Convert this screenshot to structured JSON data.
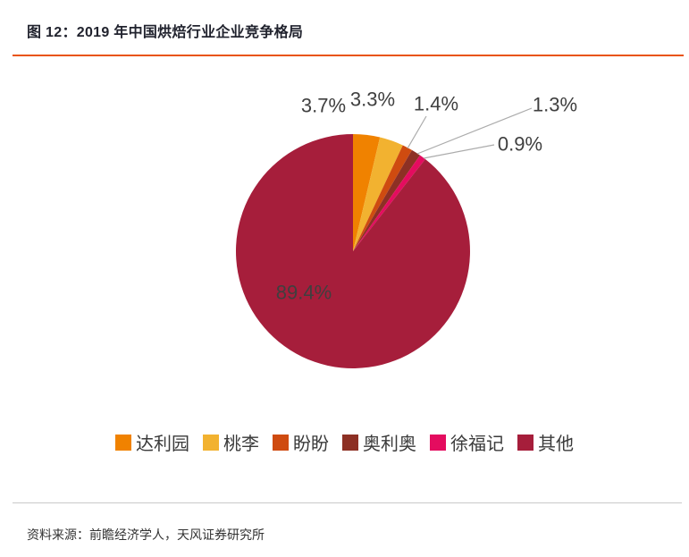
{
  "header": {
    "title": "图 12：2019 年中国烘焙行业企业竞争格局"
  },
  "chart_data": {
    "type": "pie",
    "title": "2019 年中国烘焙行业企业竞争格局",
    "labels": [
      "达利园",
      "桃李",
      "盼盼",
      "奥利奥",
      "徐福记",
      "其他"
    ],
    "values": [
      3.7,
      3.3,
      1.4,
      1.3,
      0.9,
      89.4
    ],
    "value_labels": [
      "3.7%",
      "3.3%",
      "1.4%",
      "1.3%",
      "0.9%",
      "89.4%"
    ],
    "colors": [
      "#f08200",
      "#f2b230",
      "#cf4b10",
      "#8d3024",
      "#e40c5f",
      "#a61e3b"
    ],
    "start_angle_deg": 0,
    "direction": "clockwise",
    "legend_position": "bottom"
  },
  "footer": {
    "source": "资料来源：前瞻经济学人，天风证券研究所"
  },
  "style": {
    "accent_rule": "#e9540d",
    "label_color": "#3f3f3f",
    "leader_line": "#ababab",
    "footer_rule": "#c9c9c9"
  }
}
